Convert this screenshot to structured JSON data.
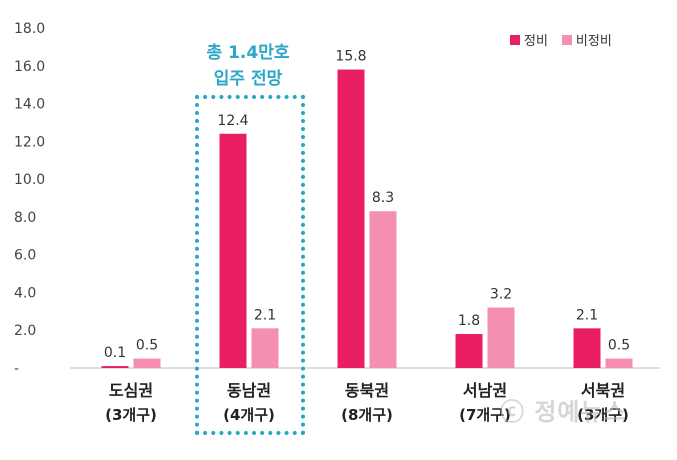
{
  "chart_data": {
    "type": "bar",
    "categories": [
      "도심권",
      "동남권",
      "동북권",
      "서남권",
      "서북권"
    ],
    "category_sublabels": [
      "(3개구)",
      "(4개구)",
      "(8개구)",
      "(7개구)",
      "(3개구)"
    ],
    "series": [
      {
        "name": "정비",
        "values": [
          0.1,
          12.4,
          15.8,
          1.8,
          2.1
        ],
        "color": "#e91e63"
      },
      {
        "name": "비정비",
        "values": [
          0.5,
          2.1,
          8.3,
          3.2,
          0.5
        ],
        "color": "#f48fb1"
      }
    ],
    "value_labels": [
      [
        "0.1",
        "12.4",
        "15.8",
        "1.8",
        "2.1"
      ],
      [
        "0.5",
        "2.1",
        "8.3",
        "3.2",
        "0.5"
      ]
    ],
    "yticks": [
      "-",
      "2.0",
      "4.0",
      "6.0",
      "8.0",
      "10.0",
      "12.0",
      "14.0",
      "16.0",
      "18.0"
    ],
    "ylim": [
      0,
      18
    ],
    "legend_position": "top-right",
    "grid": false,
    "annotation": {
      "line1": "총 1.4만호",
      "line2": "입주 전망",
      "color": "#2aa6c9",
      "target_category": "동남권"
    }
  },
  "watermark": "ⓒ 정예뉴스"
}
